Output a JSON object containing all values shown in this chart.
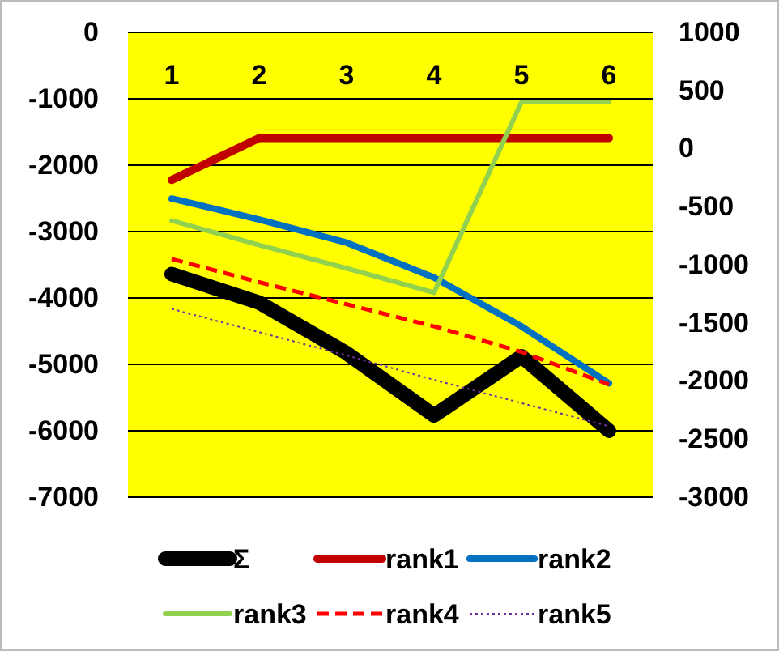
{
  "chart_data": {
    "type": "line",
    "categories": [
      "1",
      "2",
      "3",
      "4",
      "5",
      "6"
    ],
    "ylim": [
      -7000,
      0
    ],
    "yticks": [
      0,
      -1000,
      -2000,
      -3000,
      -4000,
      -5000,
      -6000,
      -7000
    ],
    "y2lim": [
      -3000,
      1000
    ],
    "y2ticks": [
      1000,
      500,
      0,
      -500,
      -1000,
      -1500,
      -2000,
      -2500,
      -3000
    ],
    "grid": "y",
    "legend": "bottom",
    "marker": "none",
    "series": [
      {
        "name": "Σ",
        "color": "#000000",
        "values": [
          -3640,
          -4070,
          -4830,
          -5770,
          -4880,
          -6000
        ]
      },
      {
        "name": "rank1",
        "color": "#c00000",
        "axis": "y2",
        "values": [
          -270,
          90,
          90,
          90,
          90,
          90
        ]
      },
      {
        "name": "rank2",
        "color": "#0070c0",
        "axis": "y2",
        "values": [
          -430,
          -610,
          -810,
          -1110,
          -1530,
          -2020
        ]
      },
      {
        "name": "rank3",
        "color": "#92d050",
        "axis": "y2",
        "values": [
          -620,
          -830,
          -1030,
          -1240,
          400,
          400
        ]
      },
      {
        "name": "rank4",
        "color": "#ff0000",
        "axis": "y2",
        "line_style": "dashed",
        "values": [
          -950,
          -1150,
          -1340,
          -1530,
          -1750,
          -2030
        ]
      },
      {
        "name": "rank5",
        "color": "#7030a0",
        "axis": "y2",
        "line_style": "dotted",
        "values": [
          -1380,
          -1580,
          -1780,
          -1990,
          -2190,
          -2390
        ]
      }
    ]
  }
}
